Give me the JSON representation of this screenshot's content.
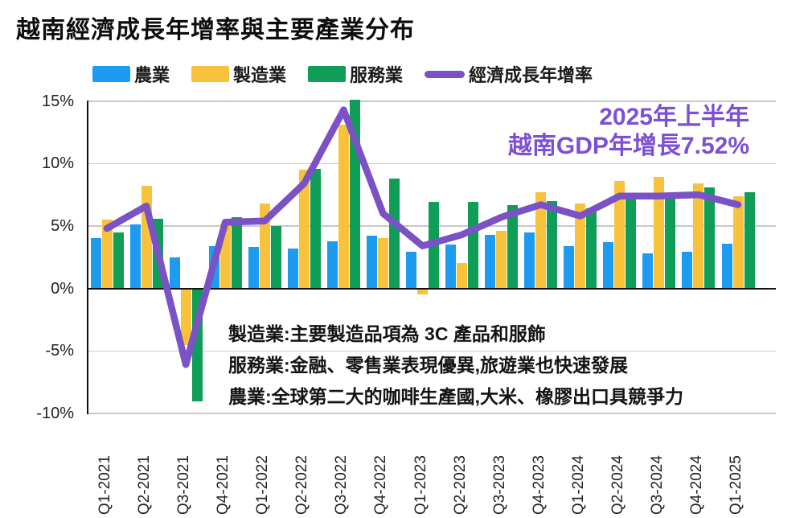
{
  "title": "越南經濟成長年增率與主要產業分布",
  "colors": {
    "agriculture": "#1D9BF0",
    "manufacturing": "#F8C23D",
    "services": "#0F9D58",
    "growth_line": "#7A52C6",
    "annotation": "#7C4FD4",
    "gridline": "#C8C8C8",
    "axis": "#111111"
  },
  "legend": {
    "items": [
      {
        "label": "農業",
        "color_key": "agriculture",
        "type": "bar"
      },
      {
        "label": "製造業",
        "color_key": "manufacturing",
        "type": "bar"
      },
      {
        "label": "服務業",
        "color_key": "services",
        "type": "bar"
      },
      {
        "label": "經濟成長年增率",
        "color_key": "growth_line",
        "type": "line"
      }
    ]
  },
  "annotation": {
    "line1": "2025年上半年",
    "line2": "越南GDP年增長7.52%"
  },
  "notes": {
    "line1": "製造業:主要製造品項為 3C 產品和服飾",
    "line2": "服務業:金融、零售業表現優異,旅遊業也快速發展",
    "line3": "農業:全球第二大的咖啡生產國,大米、橡膠出口具競爭力"
  },
  "chart_data": {
    "type": "bar+line",
    "title": "越南經濟成長年增率與主要產業分布",
    "categories": [
      "Q1-2021",
      "Q2-2021",
      "Q3-2021",
      "Q4-2021",
      "Q1-2022",
      "Q2-2022",
      "Q3-2022",
      "Q4-2022",
      "Q1-2023",
      "Q2-2023",
      "Q3-2023",
      "Q4-2023",
      "Q1-2024",
      "Q2-2024",
      "Q3-2024",
      "Q4-2024",
      "Q1-2025"
    ],
    "series": [
      {
        "name": "農業",
        "type": "bar",
        "color_key": "agriculture",
        "values": [
          4.0,
          5.1,
          2.5,
          3.4,
          3.3,
          3.2,
          3.8,
          4.2,
          2.9,
          3.5,
          4.3,
          4.5,
          3.4,
          3.7,
          2.8,
          2.9,
          3.6
        ]
      },
      {
        "name": "製造業",
        "type": "bar",
        "color_key": "manufacturing",
        "values": [
          5.5,
          8.2,
          -4.5,
          5.2,
          6.8,
          9.5,
          13.1,
          4.0,
          -0.4,
          2.0,
          4.6,
          7.7,
          6.8,
          8.6,
          8.9,
          8.4,
          7.4
        ]
      },
      {
        "name": "服務業",
        "type": "bar",
        "color_key": "services",
        "values": [
          4.5,
          5.6,
          -9.0,
          5.7,
          5.0,
          9.6,
          15.1,
          8.8,
          6.9,
          6.9,
          6.7,
          7.0,
          6.4,
          7.3,
          7.3,
          8.1,
          7.7
        ]
      },
      {
        "name": "經濟成長年增率",
        "type": "line",
        "color_key": "growth_line",
        "values": [
          4.8,
          6.6,
          -6.1,
          5.3,
          5.4,
          8.4,
          14.3,
          6.0,
          3.4,
          4.3,
          5.7,
          6.7,
          5.8,
          7.4,
          7.4,
          7.5,
          6.7
        ]
      }
    ],
    "yticks": [
      {
        "value": 15,
        "label": "15%"
      },
      {
        "value": 10,
        "label": "10%"
      },
      {
        "value": 5,
        "label": "5%"
      },
      {
        "value": 0,
        "label": "0%"
      },
      {
        "value": -5,
        "label": "-5%"
      },
      {
        "value": -10,
        "label": "-10%"
      }
    ],
    "ylim": [
      -10.2,
      15.6
    ],
    "grid": "horizontal",
    "legend_position": "top"
  }
}
